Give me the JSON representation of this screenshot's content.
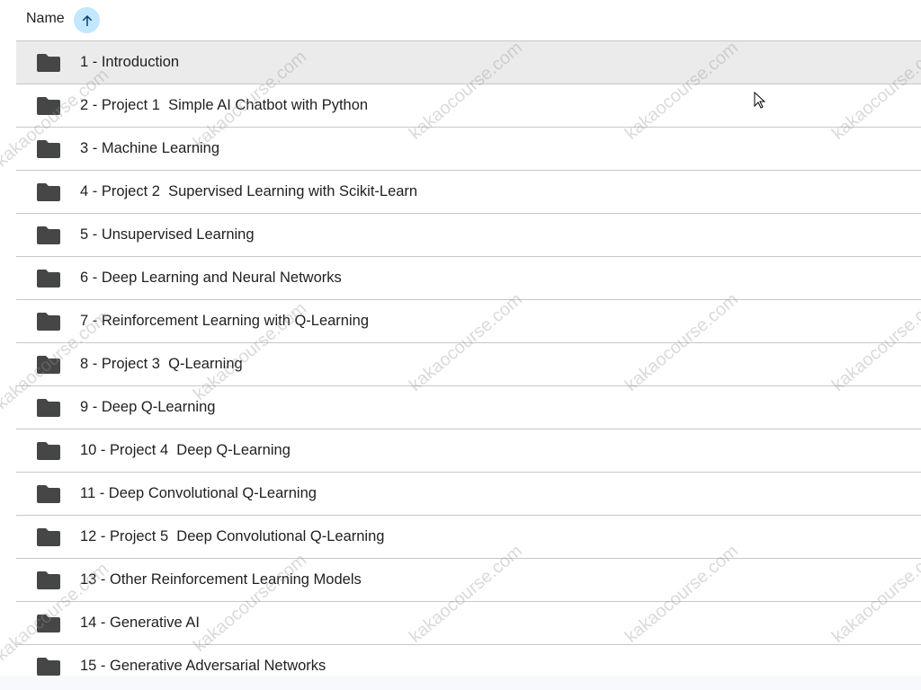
{
  "header": {
    "name_label": "Name",
    "sort_icon": "arrow-up-icon",
    "sort_bg": "#c2e7ff"
  },
  "files": [
    {
      "label": "1 - Introduction",
      "selected": true
    },
    {
      "label": "2 - Project 1  Simple AI Chatbot with Python"
    },
    {
      "label": "3 - Machine Learning"
    },
    {
      "label": "4 - Project 2  Supervised Learning with Scikit-Learn"
    },
    {
      "label": "5 - Unsupervised Learning"
    },
    {
      "label": "6 - Deep Learning and Neural Networks"
    },
    {
      "label": "7 - Reinforcement Learning with Q-Learning"
    },
    {
      "label": "8 - Project 3  Q-Learning"
    },
    {
      "label": "9 - Deep Q-Learning"
    },
    {
      "label": "10 - Project 4  Deep Q-Learning"
    },
    {
      "label": "11 - Deep Convolutional Q-Learning"
    },
    {
      "label": "12 - Project 5  Deep Convolutional Q-Learning"
    },
    {
      "label": "13 - Other Reinforcement Learning Models"
    },
    {
      "label": "14 - Generative AI"
    },
    {
      "label": "15 - Generative Adversarial Networks"
    }
  ],
  "watermark": "kakaocourse.com",
  "colors": {
    "folder": "#444746",
    "divider": "#c7c7c7",
    "selected_row": "#ebebeb"
  }
}
